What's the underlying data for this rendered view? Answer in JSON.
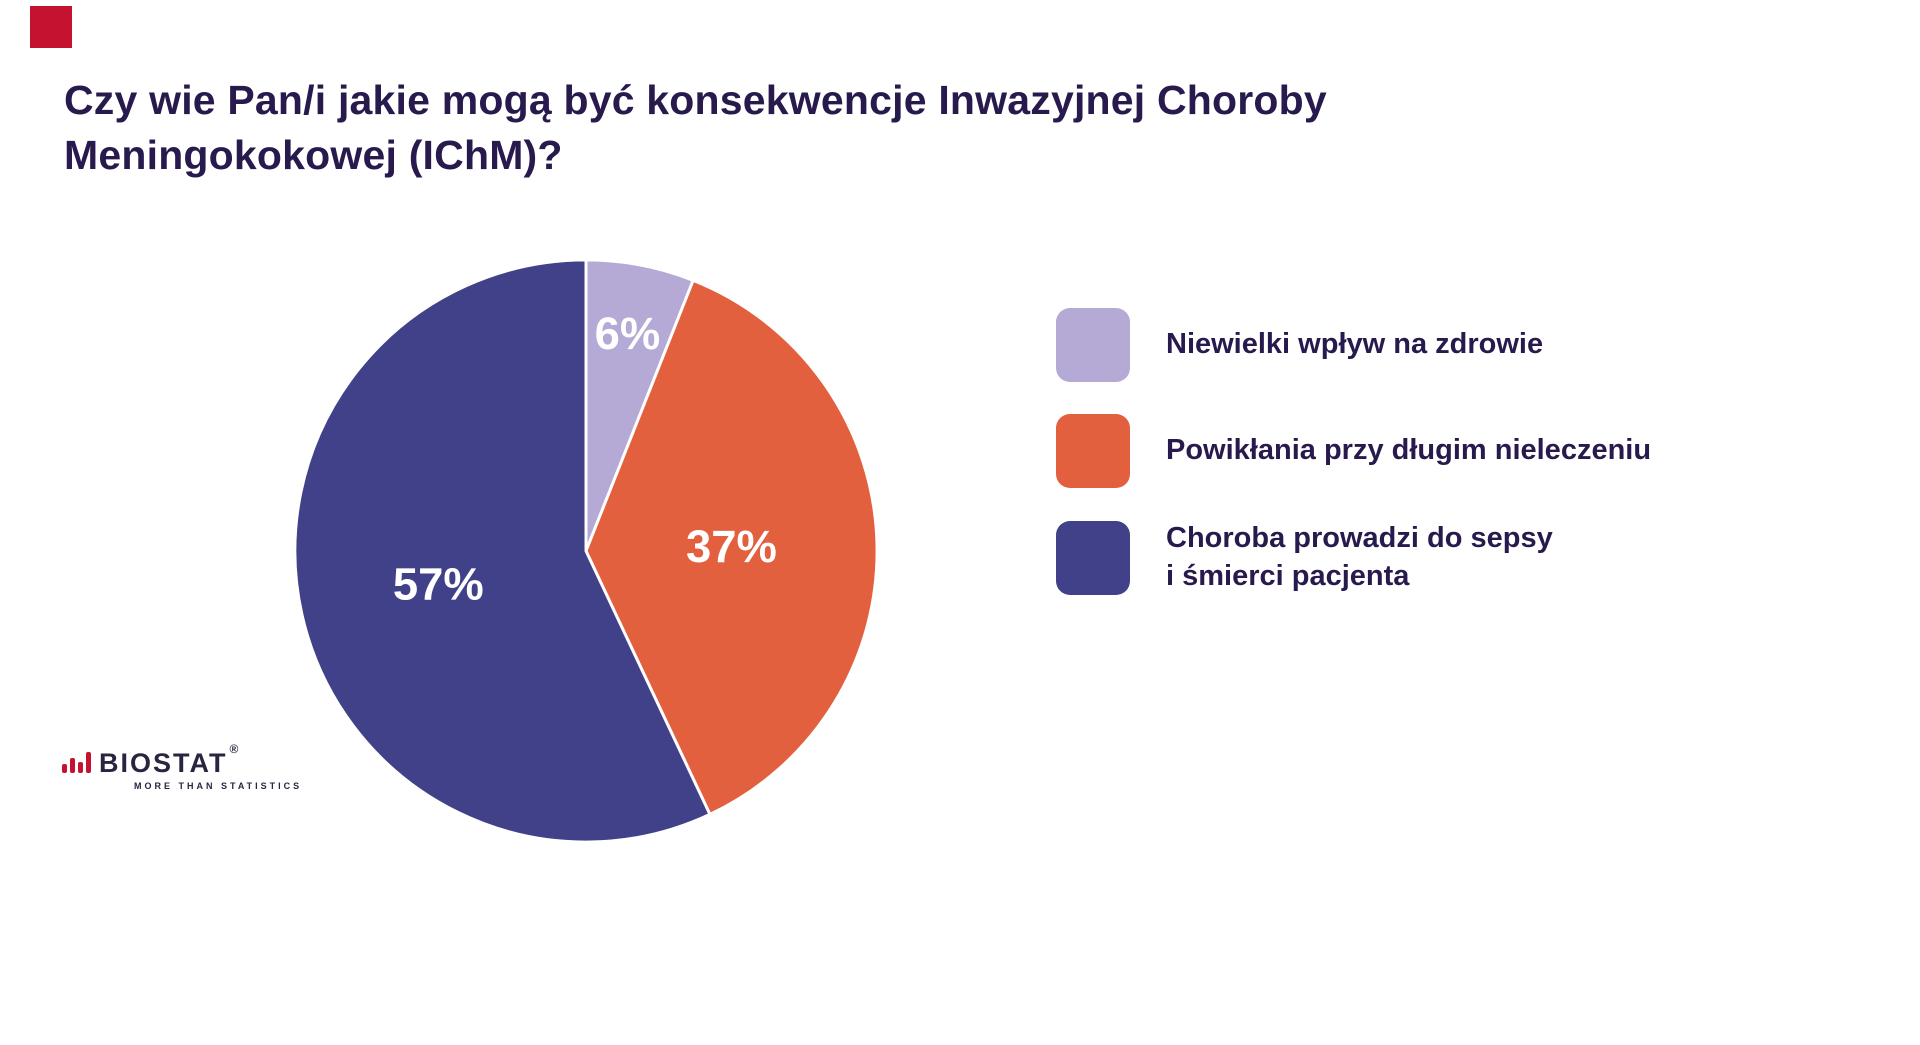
{
  "accent": {
    "square_color": "#c51230"
  },
  "title": "Czy wie Pan/i jakie mogą być konsekwencje Inwazyjnej Choroby Meningokokowej (IChM)?",
  "chart_data": {
    "type": "pie",
    "title": "Czy wie Pan/i jakie mogą być konsekwencje Inwazyjnej Choroby Meningokokowej (IChM)?",
    "start_angle_deg": 0,
    "direction": "clockwise",
    "legend_position": "right",
    "slices": [
      {
        "label": "Niewielki wpływ na zdrowie",
        "value": 6,
        "pct_label": "6%",
        "color": "#b5aad5",
        "label_r": 0.76
      },
      {
        "label": "Powikłania przy długim nieleczeniu",
        "value": 37,
        "pct_label": "37%",
        "color": "#e2603d",
        "label_r": 0.5
      },
      {
        "label": "Choroba prowadzi do sepsy\ni śmierci pacjenta",
        "value": 57,
        "pct_label": "57%",
        "color": "#414189",
        "label_r": 0.52
      }
    ],
    "label_color": "#ffffff"
  },
  "footer": {
    "logo_text": "BIOSTAT",
    "logo_reg": "®",
    "tagline": "MORE THAN STATISTICS"
  }
}
